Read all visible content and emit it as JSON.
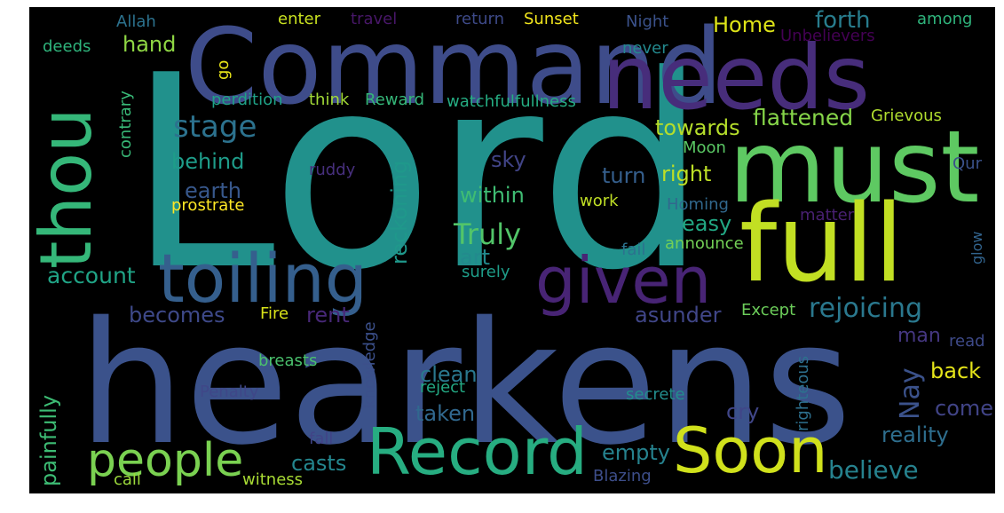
{
  "background": "#000000",
  "colormap": "viridis",
  "words": [
    {
      "text": "Lord",
      "color": "#21918c"
    },
    {
      "text": "hearkens",
      "color": "#3b528b"
    },
    {
      "text": "Command",
      "color": "#3e4c8a"
    },
    {
      "text": "needs",
      "color": "#472d7b"
    },
    {
      "text": "must",
      "color": "#5ec962"
    },
    {
      "text": "full",
      "color": "#c2df23"
    },
    {
      "text": "thou",
      "color": "#35b779"
    },
    {
      "text": "toiling",
      "color": "#355f8d"
    },
    {
      "text": "given",
      "color": "#482475"
    },
    {
      "text": "Record",
      "color": "#27ad81"
    },
    {
      "text": "Soon",
      "color": "#d0e11c"
    },
    {
      "text": "people",
      "color": "#7ad151"
    },
    {
      "text": "stage",
      "color": "#2c728e"
    },
    {
      "text": "Truly",
      "color": "#52c569"
    },
    {
      "text": "account",
      "color": "#20a486"
    },
    {
      "text": "rejoicing",
      "color": "#2a788e"
    },
    {
      "text": "flattened",
      "color": "#86d549"
    },
    {
      "text": "towards",
      "color": "#b5de2b"
    },
    {
      "text": "forth",
      "color": "#287d8e"
    },
    {
      "text": "Home",
      "color": "#dde318"
    },
    {
      "text": "believe",
      "color": "#26828e"
    },
    {
      "text": "reality",
      "color": "#2e6e8e"
    },
    {
      "text": "Nay",
      "color": "#3b528b"
    },
    {
      "text": "back",
      "color": "#e5e419"
    },
    {
      "text": "come",
      "color": "#414487"
    },
    {
      "text": "man",
      "color": "#453781"
    },
    {
      "text": "cry",
      "color": "#404688"
    },
    {
      "text": "right",
      "color": "#bddf26"
    },
    {
      "text": "turn",
      "color": "#355f8d"
    },
    {
      "text": "easy",
      "color": "#22a884"
    },
    {
      "text": "within",
      "color": "#3fbc73"
    },
    {
      "text": "sky",
      "color": "#414487"
    },
    {
      "text": "earth",
      "color": "#38588c"
    },
    {
      "text": "behind",
      "color": "#1e9c89"
    },
    {
      "text": "reckoning",
      "color": "#1f988b"
    },
    {
      "text": "art",
      "color": "#238a8d"
    },
    {
      "text": "becomes",
      "color": "#3e4989"
    },
    {
      "text": "rent",
      "color": "#482878"
    },
    {
      "text": "asunder",
      "color": "#404688"
    },
    {
      "text": "clean",
      "color": "#2a788e"
    },
    {
      "text": "taken",
      "color": "#31688e"
    },
    {
      "text": "empty",
      "color": "#26828e"
    },
    {
      "text": "casts",
      "color": "#24868e"
    },
    {
      "text": "painfully",
      "color": "#3dbc74"
    },
    {
      "text": "hand",
      "color": "#8fd744"
    },
    {
      "text": "deeds",
      "color": "#2fb47c"
    },
    {
      "text": "Allah",
      "color": "#2c728e"
    },
    {
      "text": "enter",
      "color": "#c8e020"
    },
    {
      "text": "travel",
      "color": "#481769"
    },
    {
      "text": "return",
      "color": "#3e4a89"
    },
    {
      "text": "Sunset",
      "color": "#f1e51d"
    },
    {
      "text": "Night",
      "color": "#3b528b"
    },
    {
      "text": "among",
      "color": "#2fb47c"
    },
    {
      "text": "never",
      "color": "#23898e"
    },
    {
      "text": "Unbelievers",
      "color": "#440154"
    },
    {
      "text": "go",
      "color": "#e7e419"
    },
    {
      "text": "contrary",
      "color": "#38b977"
    },
    {
      "text": "perdition",
      "color": "#1fa287"
    },
    {
      "text": "think",
      "color": "#a2da37"
    },
    {
      "text": "Reward",
      "color": "#35b779"
    },
    {
      "text": "watchfulfullness",
      "color": "#25ac82"
    },
    {
      "text": "Grievous",
      "color": "#b0dd2f"
    },
    {
      "text": "Moon",
      "color": "#5ac864"
    },
    {
      "text": "Qur",
      "color": "#3b528b"
    },
    {
      "text": "ruddy",
      "color": "#472f7d"
    },
    {
      "text": "prostrate",
      "color": "#fde725"
    },
    {
      "text": "work",
      "color": "#c0df25"
    },
    {
      "text": "Homing",
      "color": "#31688e"
    },
    {
      "text": "matter",
      "color": "#482071"
    },
    {
      "text": "glow",
      "color": "#32648e"
    },
    {
      "text": "fail",
      "color": "#2c728e"
    },
    {
      "text": "announce",
      "color": "#73d056"
    },
    {
      "text": "surely",
      "color": "#1e9d89"
    },
    {
      "text": "Except",
      "color": "#6ccd5a"
    },
    {
      "text": "Fire",
      "color": "#d8e219"
    },
    {
      "text": "read",
      "color": "#3e4a89"
    },
    {
      "text": "righteous",
      "color": "#2d708e"
    },
    {
      "text": "knowledge",
      "color": "#3c508b"
    },
    {
      "text": "breasts",
      "color": "#4ac16d"
    },
    {
      "text": "Penalty",
      "color": "#3f4788"
    },
    {
      "text": "reject",
      "color": "#23a983"
    },
    {
      "text": "secrete",
      "color": "#228d8d"
    },
    {
      "text": "fall",
      "color": "#414487"
    },
    {
      "text": "call",
      "color": "#9bd93c"
    },
    {
      "text": "witness",
      "color": "#a8db34"
    },
    {
      "text": "Blazing",
      "color": "#3d4e8a"
    }
  ]
}
